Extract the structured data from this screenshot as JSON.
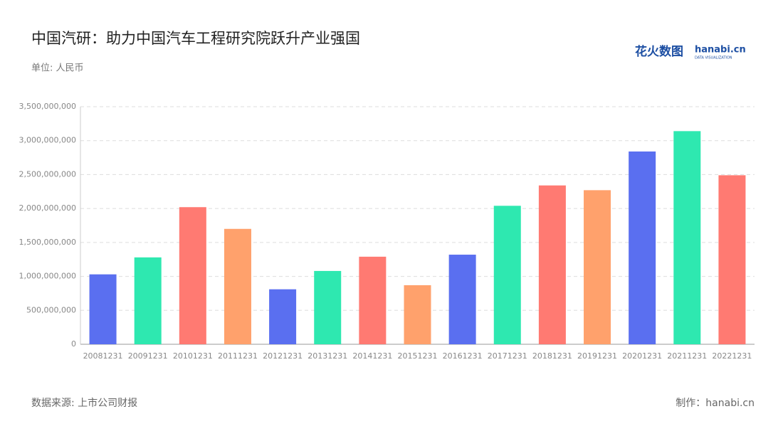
{
  "chart_data": {
    "type": "bar",
    "title": "中国汽研：助力中国汽车工程研究院跃升产业强国",
    "subtitle": "单位: 人民币",
    "source": "数据来源: 上市公司财报",
    "credit": "制作：hanabi.cn",
    "logo": {
      "name": "花火数图",
      "site": "hanabi.cn",
      "tagline": "DATA VISUALIZATION"
    },
    "categories": [
      "20081231",
      "20091231",
      "20101231",
      "20111231",
      "20121231",
      "20131231",
      "20141231",
      "20151231",
      "20161231",
      "20171231",
      "20181231",
      "20191231",
      "20201231",
      "20211231",
      "20221231"
    ],
    "values": [
      1030000000,
      1280000000,
      2020000000,
      1700000000,
      810000000,
      1080000000,
      1290000000,
      870000000,
      1320000000,
      2040000000,
      2340000000,
      2270000000,
      2840000000,
      3140000000,
      2490000000
    ],
    "colors": [
      "#5a6ff0",
      "#2ee8b0",
      "#ff7a72",
      "#ffa16c",
      "#5a6ff0",
      "#2ee8b0",
      "#ff7a72",
      "#ffa16c",
      "#5a6ff0",
      "#2ee8b0",
      "#ff7a72",
      "#ffa16c",
      "#5a6ff0",
      "#2ee8b0",
      "#ff7a72"
    ],
    "ylim": [
      0,
      3500000000
    ],
    "yticks": [
      0,
      {
        "value": 500000000,
        "label": "500,000,000"
      },
      {
        "value": 1000000000,
        "label": "1,000,000,000"
      },
      {
        "value": 1500000000,
        "label": "1,500,000,000"
      },
      {
        "value": 2000000000,
        "label": "2,000,000,000"
      },
      {
        "value": 2500000000,
        "label": "2,500,000,000"
      },
      {
        "value": 3000000000,
        "label": "3,000,000,000"
      },
      {
        "value": 3500000000,
        "label": "3,500,000,000"
      }
    ],
    "grid": true
  }
}
